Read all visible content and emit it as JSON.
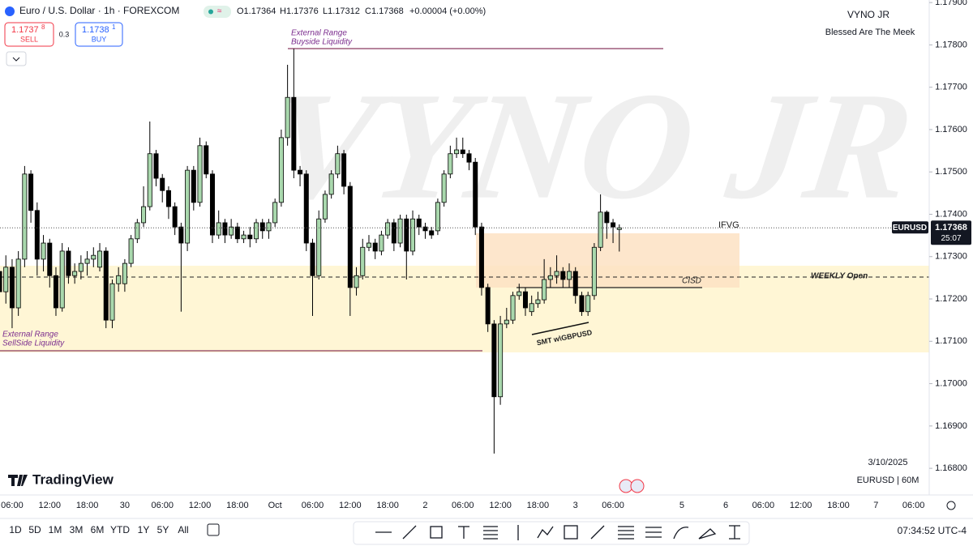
{
  "header": {
    "symbol": "Euro / U.S. Dollar · 1h · FOREXCOM",
    "ohlc": [
      "O1.17364",
      "H1.17376",
      "L1.17312",
      "C1.17368",
      "+0.00004 (+0.00%)"
    ]
  },
  "trade": {
    "sell_price": "1.1737",
    "sell_pip": "8",
    "sell_label": "SELL",
    "spread": "0.3",
    "buy_price": "1.1738",
    "buy_pip": "1",
    "buy_label": "BUY"
  },
  "watermark": "VYNO JR",
  "author": {
    "name": "VYNO JR",
    "motto": "Blessed Are The Meek"
  },
  "footer_info": {
    "date": "3/10/2025",
    "symbol_interval": "EURUSD | 60M"
  },
  "logo": "TradingView",
  "annotations": {
    "buyside_1": "External Range",
    "buyside_2": "Buyside Liquidity",
    "sellside_1": "External Range",
    "sellside_2": "SellSide Liquidity",
    "ifvg": "IFVG",
    "cisd": "CISD",
    "weekly_open": "WEEKLY  Open",
    "smt": "SMT w\\GBPUSD"
  },
  "price_tag": {
    "symbol": "EURUSD",
    "countdown": "25:07"
  },
  "toolbar": {
    "ranges": [
      "1D",
      "5D",
      "1M",
      "3M",
      "6M",
      "YTD",
      "1Y",
      "5Y",
      "All"
    ],
    "clock": "07:34:52 UTC-4"
  },
  "chart_data": {
    "type": "candlestick",
    "up_color": "#a9d8ad",
    "down_color": "#000000",
    "wick_color": "#000000",
    "grid": false,
    "ylim": [
      1.16739,
      1.17906
    ],
    "yticks": [
      {
        "value": 1.168,
        "label": "1.16800"
      },
      {
        "value": 1.169,
        "label": "1.16900"
      },
      {
        "value": 1.17,
        "label": "1.17000"
      },
      {
        "value": 1.171,
        "label": "1.17100"
      },
      {
        "value": 1.172,
        "label": "1.17200"
      },
      {
        "value": 1.173,
        "label": "1.17300"
      },
      {
        "value": 1.174,
        "label": "1.17400"
      },
      {
        "value": 1.175,
        "label": "1.17500"
      },
      {
        "value": 1.176,
        "label": "1.17600"
      },
      {
        "value": 1.177,
        "label": "1.17700"
      },
      {
        "value": 1.178,
        "label": "1.17800"
      },
      {
        "value": 1.179,
        "label": "1.17900"
      }
    ],
    "categories": [
      null,
      null,
      "06:00",
      null,
      null,
      null,
      null,
      null,
      "12:00",
      null,
      null,
      null,
      null,
      null,
      "18:00",
      null,
      null,
      null,
      null,
      null,
      "30",
      null,
      null,
      null,
      null,
      null,
      "06:00",
      null,
      null,
      null,
      null,
      null,
      "12:00",
      null,
      null,
      null,
      null,
      null,
      "18:00",
      null,
      null,
      null,
      null,
      null,
      "Oct",
      null,
      null,
      null,
      null,
      null,
      "06:00",
      null,
      null,
      null,
      null,
      null,
      "12:00",
      null,
      null,
      null,
      null,
      null,
      "18:00",
      null,
      null,
      null,
      null,
      null,
      "2",
      null,
      null,
      null,
      null,
      null,
      "06:00",
      null,
      null,
      null,
      null,
      null,
      "12:00",
      null,
      null,
      null,
      null,
      null,
      "18:00",
      null,
      null,
      null,
      null,
      null,
      "3",
      null,
      null,
      null,
      null,
      null,
      "06:00",
      null,
      null,
      null,
      null,
      null,
      null,
      null,
      null,
      null,
      null,
      "5",
      null,
      null,
      null,
      null,
      null,
      null,
      "6",
      null,
      null,
      null,
      null,
      null,
      "06:00",
      null,
      null,
      null,
      null,
      null,
      "12:00",
      null,
      null,
      null,
      null,
      null,
      "18:00",
      null,
      null,
      null,
      null,
      null,
      "7",
      null,
      null,
      null,
      null,
      null,
      "06:00"
    ],
    "open": [
      1.17265,
      1.17217,
      1.17275,
      1.17179,
      1.17294,
      1.17495,
      1.17409,
      1.17294,
      1.17332,
      1.17255,
      1.17179,
      1.17313,
      1.17255,
      1.17265,
      1.17284,
      1.17294,
      1.17275,
      1.17313,
      1.1715,
      1.17236,
      1.17236,
      1.17284,
      1.17342,
      1.1738,
      1.17418,
      1.17543,
      1.17485,
      1.17456,
      1.17418,
      1.1737,
      1.17332,
      1.17504,
      1.17428,
      1.17562,
      1.17495,
      1.17351,
      1.1738,
      1.17351,
      1.1737,
      1.17342,
      1.17351,
      1.17342,
      1.1738,
      1.17361,
      1.1738,
      1.17428,
      1.17581,
      1.17676,
      1.17504,
      1.17495,
      1.17332,
      1.17255,
      1.17389,
      1.17447,
      1.17495,
      1.17543,
      1.17466,
      1.17227,
      1.17255,
      1.17322,
      1.17332,
      1.17313,
      1.17351,
      1.1738,
      1.17332,
      1.17389,
      1.17313,
      1.17389,
      1.1737,
      1.17361,
      1.17361,
      1.17428,
      1.17495,
      1.17543,
      1.17552,
      1.17543,
      1.17523,
      1.1737,
      1.17227,
      1.17141,
      1.16969,
      1.17141,
      1.1715,
      1.17208,
      1.17217,
      1.1717,
      1.17189,
      1.17198,
      1.17246,
      1.17255,
      1.17265,
      1.17246,
      1.17265,
      1.17208,
      1.1717,
      1.17208,
      1.17322,
      1.17405,
      1.1738,
      1.17364,
      null,
      null,
      null,
      null,
      null,
      null,
      null,
      null,
      null,
      null,
      null,
      null,
      null,
      null,
      null,
      null,
      null,
      null,
      null,
      null,
      null,
      null,
      null,
      null,
      null,
      null,
      null,
      null,
      null,
      null,
      null,
      null,
      null,
      null,
      null,
      null,
      null,
      null,
      null,
      null,
      null,
      null,
      null,
      null,
      null,
      null,
      null
    ],
    "high": [
      1.17294,
      1.17303,
      1.17294,
      1.17313,
      1.17514,
      1.17504,
      1.17428,
      1.17351,
      1.17342,
      1.17275,
      1.17332,
      1.17322,
      1.17284,
      1.17303,
      1.17313,
      1.17322,
      1.17332,
      1.17322,
      1.17246,
      1.17275,
      1.17294,
      1.17351,
      1.17389,
      1.17466,
      1.17619,
      1.17552,
      1.17495,
      1.17466,
      1.17428,
      1.1738,
      1.17514,
      1.17514,
      1.17581,
      1.17572,
      1.17504,
      1.17409,
      1.17389,
      1.17389,
      1.1738,
      1.17361,
      1.1737,
      1.17389,
      1.17389,
      1.17389,
      1.17437,
      1.176,
      1.17753,
      1.17791,
      1.17514,
      1.17504,
      1.17342,
      1.17409,
      1.17456,
      1.17504,
      1.17562,
      1.17552,
      1.17476,
      1.17275,
      1.17342,
      1.17351,
      1.17342,
      1.17361,
      1.17389,
      1.17389,
      1.17399,
      1.17399,
      1.17409,
      1.17399,
      1.1738,
      1.1737,
      1.17437,
      1.17504,
      1.17562,
      1.17581,
      1.17581,
      1.17552,
      1.17533,
      1.1738,
      1.17236,
      1.1715,
      1.1716,
      1.17179,
      1.17217,
      1.17236,
      1.17227,
      1.17208,
      1.17217,
      1.17294,
      1.17275,
      1.17303,
      1.17275,
      1.17284,
      1.17275,
      1.17217,
      1.17217,
      1.17332,
      1.17447,
      1.17409,
      1.17389,
      1.17376,
      null,
      null,
      null,
      null,
      null,
      null,
      null,
      null,
      null,
      null,
      null,
      null,
      null,
      null,
      null,
      null,
      null,
      null,
      null,
      null,
      null,
      null,
      null,
      null,
      null,
      null,
      null,
      null,
      null,
      null,
      null,
      null,
      null,
      null,
      null,
      null,
      null,
      null,
      null,
      null,
      null,
      null,
      null,
      null,
      null,
      null,
      null
    ],
    "low": [
      1.17179,
      1.17189,
      1.17131,
      1.1716,
      1.17275,
      1.1738,
      1.17255,
      1.17265,
      1.17227,
      1.1716,
      1.1717,
      1.17236,
      1.17236,
      1.17246,
      1.17255,
      1.17275,
      1.17265,
      1.17131,
      1.17131,
      1.17217,
      1.17217,
      1.17275,
      1.17332,
      1.1737,
      1.17409,
      1.17466,
      1.17428,
      1.17389,
      1.17351,
      1.1717,
      1.17313,
      1.17409,
      1.17418,
      1.17485,
      1.17332,
      1.17342,
      1.17332,
      1.17342,
      1.17332,
      1.17332,
      1.17322,
      1.17332,
      1.17342,
      1.17342,
      1.1737,
      1.17418,
      1.17562,
      1.17485,
      1.17466,
      1.17313,
      1.1716,
      1.17246,
      1.1738,
      1.17437,
      1.17485,
      1.17447,
      1.1716,
      1.17208,
      1.17246,
      1.17313,
      1.17294,
      1.17303,
      1.17342,
      1.17313,
      1.17322,
      1.17246,
      1.17303,
      1.17351,
      1.17342,
      1.17342,
      1.17351,
      1.17418,
      1.17485,
      1.17533,
      1.17533,
      1.17504,
      1.17351,
      1.17208,
      1.17122,
      1.16835,
      1.1695,
      1.17131,
      1.17141,
      1.17198,
      1.1716,
      1.1716,
      1.17179,
      1.17189,
      1.17227,
      1.17236,
      1.17227,
      1.17227,
      1.17189,
      1.1716,
      1.1716,
      1.17198,
      1.17313,
      1.17342,
      1.17332,
      1.17312,
      null,
      null,
      null,
      null,
      null,
      null,
      null,
      null,
      null,
      null,
      null,
      null,
      null,
      null,
      null,
      null,
      null,
      null,
      null,
      null,
      null,
      null,
      null,
      null,
      null,
      null,
      null,
      null,
      null,
      null,
      null,
      null,
      null,
      null,
      null,
      null,
      null,
      null,
      null,
      null,
      null,
      null,
      null,
      null,
      null,
      null,
      null
    ],
    "close": [
      1.17217,
      1.17275,
      1.17179,
      1.17294,
      1.17495,
      1.17409,
      1.17294,
      1.17332,
      1.17255,
      1.17179,
      1.17313,
      1.17255,
      1.17265,
      1.17284,
      1.17294,
      1.17303,
      1.17313,
      1.1715,
      1.17236,
      1.17255,
      1.17284,
      1.17342,
      1.1738,
      1.17418,
      1.17543,
      1.17485,
      1.17456,
      1.17418,
      1.1737,
      1.17332,
      1.17504,
      1.17428,
      1.17562,
      1.17495,
      1.17351,
      1.1738,
      1.17351,
      1.1737,
      1.17342,
      1.17351,
      1.17342,
      1.1738,
      1.17361,
      1.1738,
      1.17428,
      1.17581,
      1.17676,
      1.17504,
      1.17495,
      1.17332,
      1.17255,
      1.17389,
      1.17447,
      1.17495,
      1.17543,
      1.17466,
      1.17227,
      1.17255,
      1.17322,
      1.17332,
      1.17313,
      1.17351,
      1.1738,
      1.17332,
      1.17389,
      1.17313,
      1.17389,
      1.1737,
      1.17361,
      1.17351,
      1.17428,
      1.17495,
      1.17543,
      1.17552,
      1.17543,
      1.17523,
      1.1737,
      1.17227,
      1.17141,
      1.16969,
      1.17141,
      1.1715,
      1.17208,
      1.17217,
      1.17179,
      1.17189,
      1.17198,
      1.17246,
      1.17255,
      1.17265,
      1.17246,
      1.17265,
      1.17208,
      1.1717,
      1.17208,
      1.17322,
      1.17405,
      1.1738,
      1.1737,
      1.17368,
      null,
      null,
      null,
      null,
      null,
      null,
      null,
      null,
      null,
      null,
      null,
      null,
      null,
      null,
      null,
      null,
      null,
      null,
      null,
      null,
      null,
      null,
      null,
      null,
      null,
      null,
      null,
      null,
      null,
      null,
      null,
      null,
      null,
      null,
      null,
      null,
      null,
      null,
      null,
      null,
      null,
      null,
      null,
      null,
      null,
      null,
      null
    ]
  }
}
